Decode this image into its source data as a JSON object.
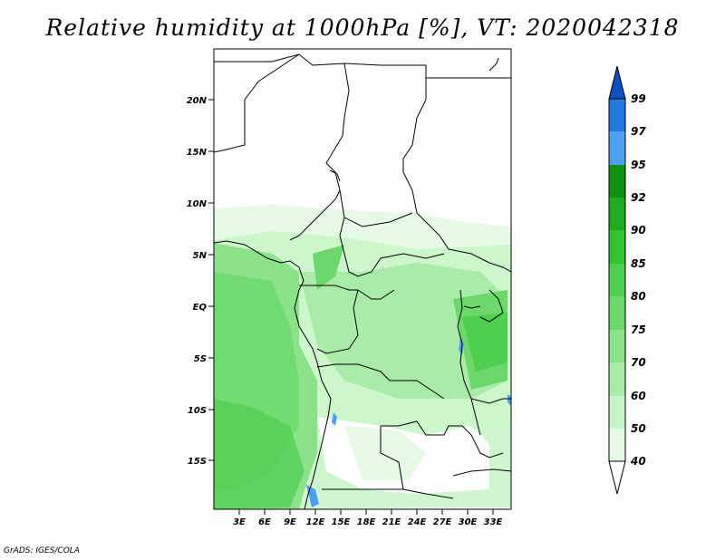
{
  "title": "Relative humidity at 1000hPa [%], VT: 2020042318",
  "credit": "GrADS: IGES/COLA",
  "map": {
    "lat_labels": [
      "20N",
      "15N",
      "10N",
      "5N",
      "EQ",
      "5S",
      "10S",
      "15S"
    ],
    "lon_labels": [
      "3E",
      "6E",
      "9E",
      "12E",
      "15E",
      "18E",
      "21E",
      "24E",
      "27E",
      "30E",
      "33E"
    ]
  },
  "colorbar": {
    "levels": [
      "40",
      "50",
      "60",
      "70",
      "75",
      "80",
      "85",
      "90",
      "92",
      "95",
      "97",
      "99"
    ],
    "colors": [
      "#ffffff",
      "#e6fae6",
      "#c8f5c8",
      "#a9eca9",
      "#8be28b",
      "#6cd86c",
      "#4ecf4e",
      "#32c332",
      "#1fab1f",
      "#0f8f0f",
      "#4f9fef",
      "#2577de",
      "#0f4fbf"
    ]
  }
}
